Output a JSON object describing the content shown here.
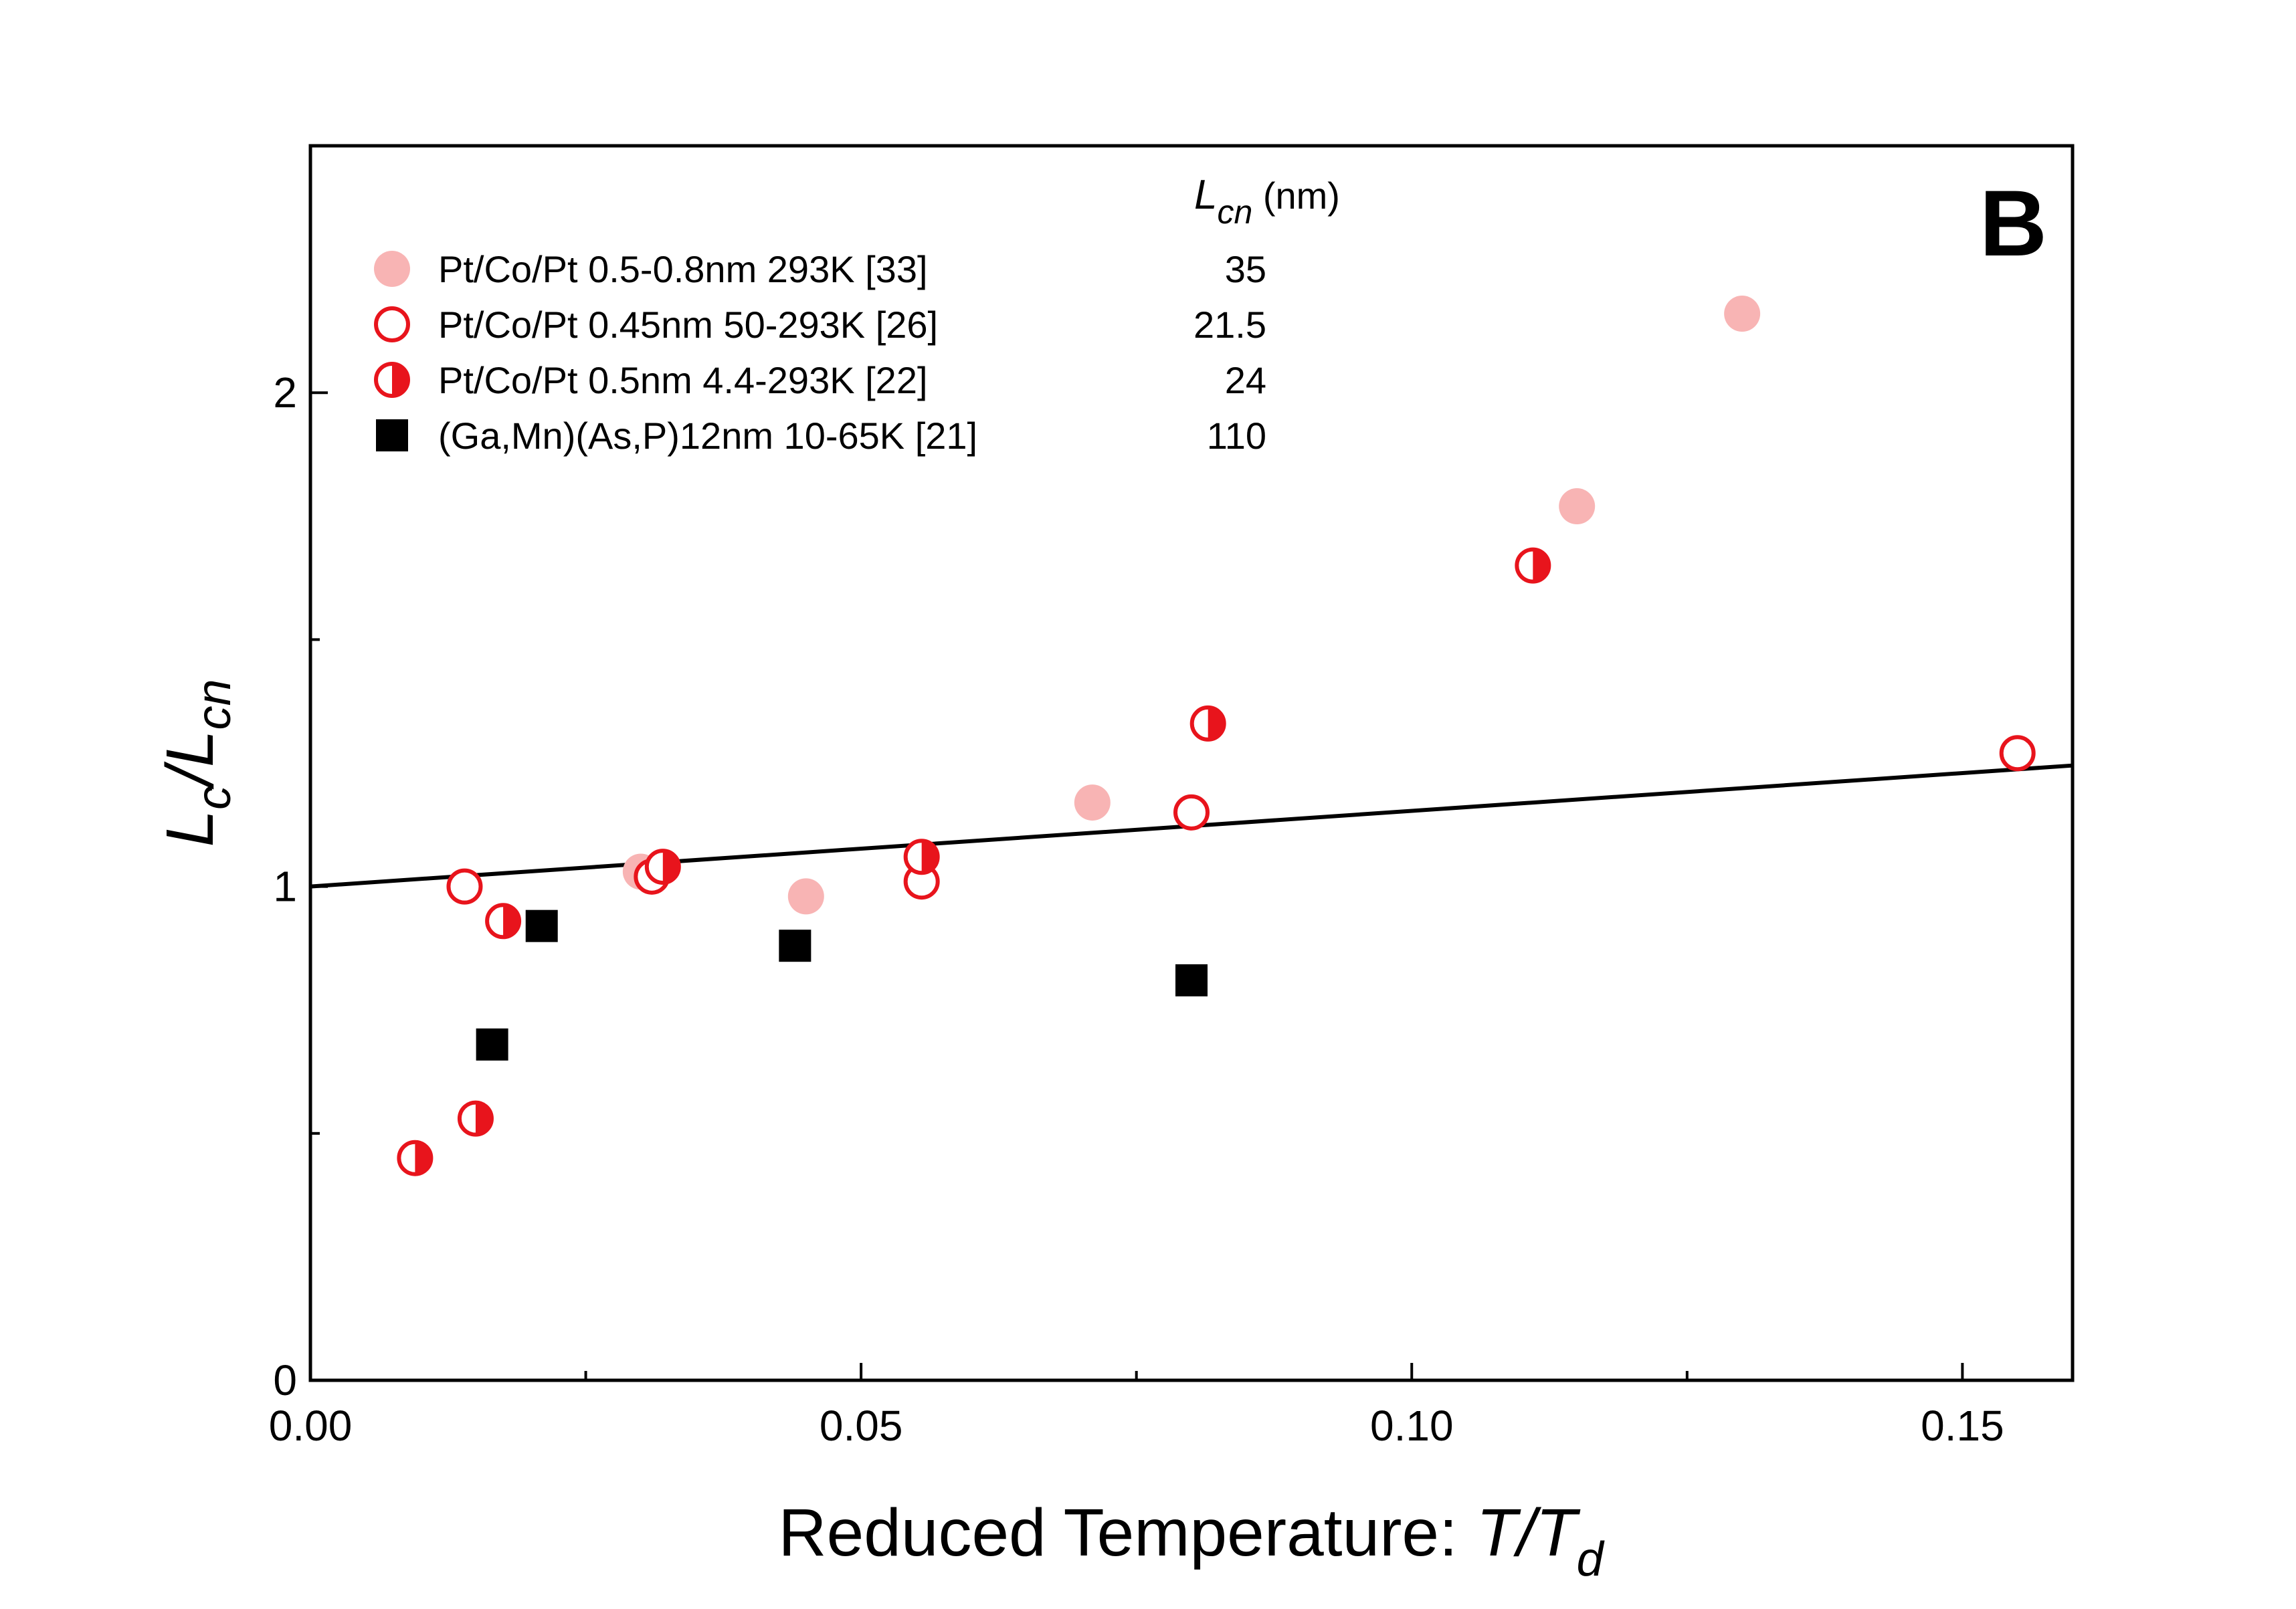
{
  "chart_data": {
    "type": "scatter",
    "panel_label": "B",
    "xlabel": {
      "text": "Reduced Temperature: ",
      "var": "T",
      "slash": "/",
      "var2": "T",
      "sub": "d"
    },
    "ylabel": {
      "var": "L",
      "sub": "c",
      "slash": "/",
      "var2": "L",
      "sub2": "cn"
    },
    "xlim": [
      0,
      0.16
    ],
    "ylim": [
      0,
      2.5
    ],
    "x_ticks": [
      {
        "value": 0.0,
        "label": "0.00"
      },
      {
        "value": 0.05,
        "label": "0.05"
      },
      {
        "value": 0.1,
        "label": "0.10"
      },
      {
        "value": 0.15,
        "label": "0.15"
      }
    ],
    "x_minor_ticks": [
      0.025,
      0.075,
      0.125
    ],
    "y_ticks": [
      {
        "value": 0,
        "label": "0"
      },
      {
        "value": 1,
        "label": "1"
      },
      {
        "value": 2,
        "label": "2"
      }
    ],
    "y_minor_ticks": [
      0.5,
      1.5
    ],
    "legend": {
      "placement": "top-left",
      "header": {
        "var": "L",
        "sub": "cn",
        "unit": " (nm)"
      }
    },
    "series": [
      {
        "name": "Pt/Co/Pt 0.5-0.8nm 293K [33]",
        "lcn": "35",
        "marker": "filled-circle",
        "color": "#f8b4b4",
        "points": [
          [
            0.03,
            1.03
          ],
          [
            0.045,
            0.98
          ],
          [
            0.071,
            1.17
          ],
          [
            0.115,
            1.77
          ],
          [
            0.13,
            2.16
          ]
        ]
      },
      {
        "name": "Pt/Co/Pt 0.45nm 50-293K [26]",
        "lcn": "21.5",
        "marker": "open-circle",
        "color": "#e8141c",
        "points": [
          [
            0.014,
            1.0
          ],
          [
            0.031,
            1.02
          ],
          [
            0.0555,
            1.01
          ],
          [
            0.08,
            1.15
          ],
          [
            0.155,
            1.27
          ]
        ]
      },
      {
        "name": "Pt/Co/Pt 0.5nm 4.4-293K [22]",
        "lcn": "24",
        "marker": "half-filled-circle",
        "color": "#e8141c",
        "points": [
          [
            0.0095,
            0.45
          ],
          [
            0.015,
            0.53
          ],
          [
            0.0175,
            0.93
          ],
          [
            0.032,
            1.04
          ],
          [
            0.0555,
            1.06
          ],
          [
            0.0815,
            1.33
          ],
          [
            0.111,
            1.65
          ]
        ]
      },
      {
        "name": "(Ga,Mn)(As,P)12nm 10-65K [21]",
        "lcn": "110",
        "marker": "filled-square",
        "color": "#000000",
        "points": [
          [
            0.0165,
            0.68
          ],
          [
            0.021,
            0.92
          ],
          [
            0.044,
            0.88
          ],
          [
            0.08,
            0.81
          ]
        ]
      }
    ],
    "fit_line": {
      "x": [
        0,
        0.16
      ],
      "y": [
        1.0,
        1.245
      ],
      "color": "#000000"
    }
  }
}
